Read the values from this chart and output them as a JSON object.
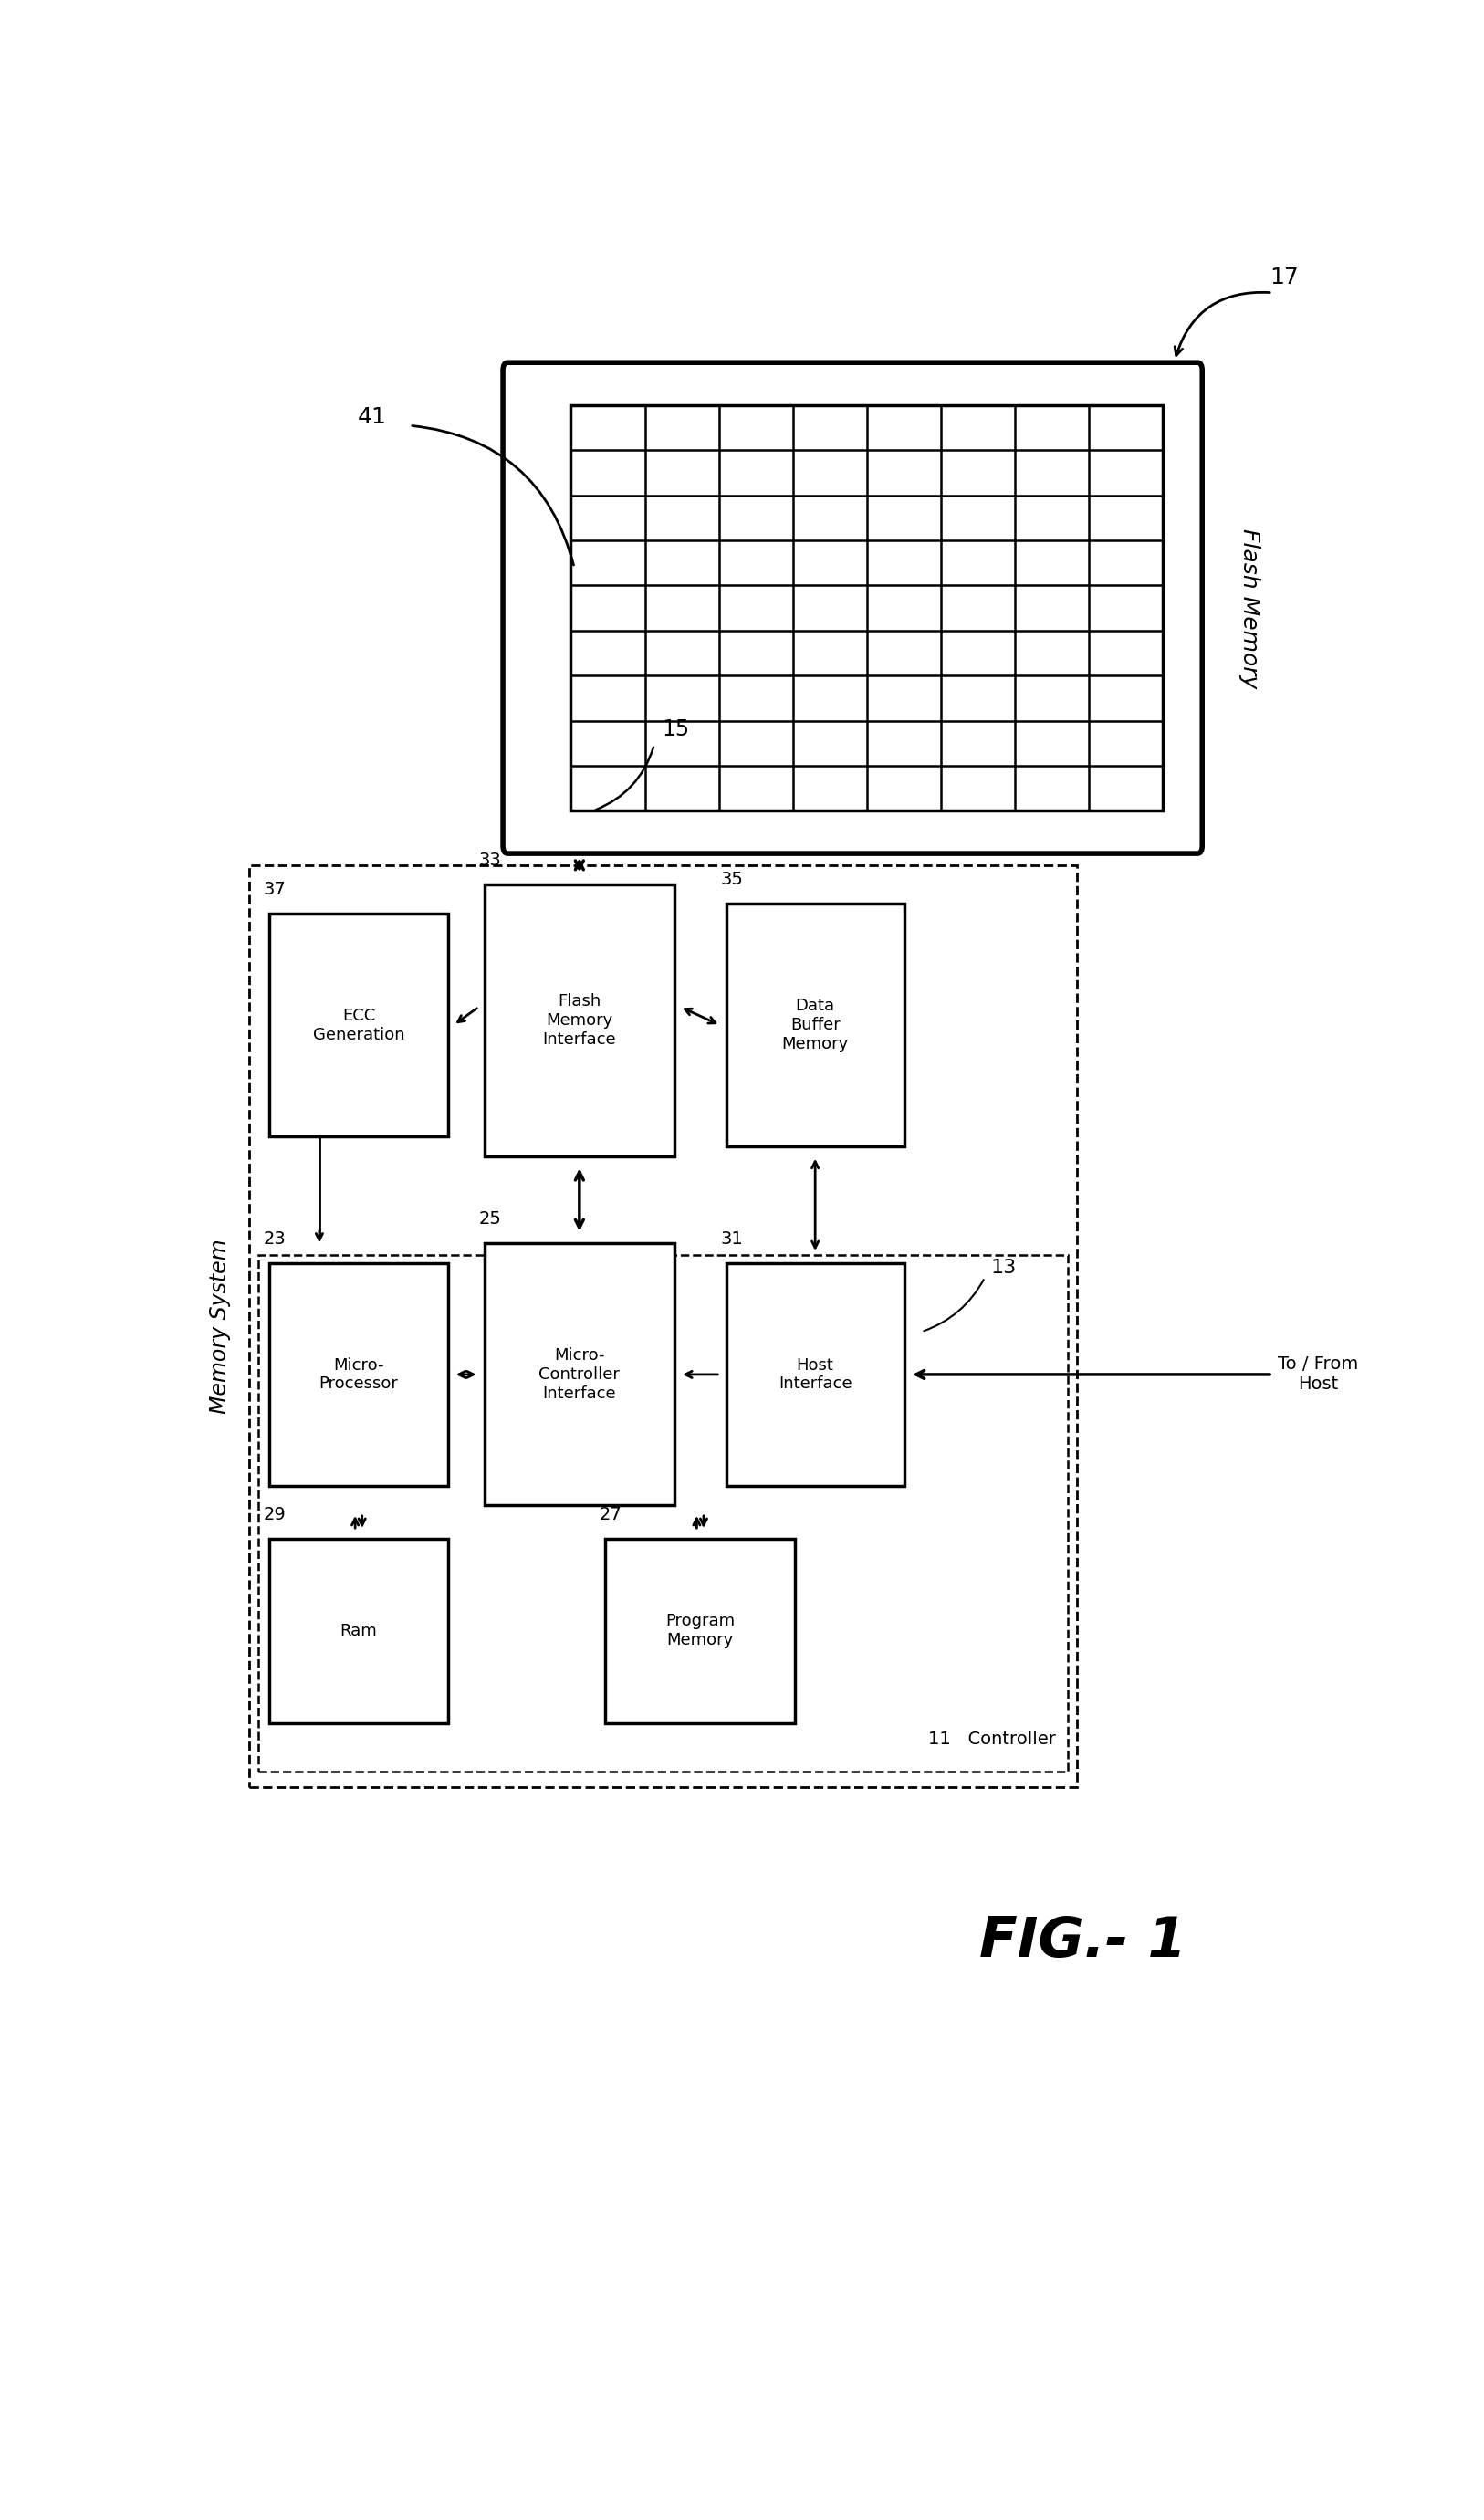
{
  "fig_width": 16.26,
  "fig_height": 27.61,
  "bg_color": "#ffffff",
  "flash_memory_label": "Flash Memory",
  "fig_label": "FIG.- 1",
  "memory_system_label": "Memory System",
  "controller_label": "Controller",
  "controller_ref": "11",
  "flash_ref": "17",
  "grid_ref": "41",
  "connection_ref": "15",
  "host_text": "To / From\nHost",
  "host_ref": "13",
  "boxes": {
    "ecc": {
      "label": "ECC\nGeneration",
      "ref": "37"
    },
    "fmi": {
      "label": "Flash\nMemory\nInterface",
      "ref": "33"
    },
    "dbm": {
      "label": "Data\nBuffer\nMemory",
      "ref": "35"
    },
    "mp": {
      "label": "Micro-\nProcessor",
      "ref": "23"
    },
    "mci": {
      "label": "Micro-\nController\nInterface",
      "ref": "25"
    },
    "hi": {
      "label": "Host\nInterface",
      "ref": "31"
    },
    "ram": {
      "label": "Ram",
      "ref": "29"
    },
    "pm": {
      "label": "Program\nMemory",
      "ref": "27"
    }
  }
}
